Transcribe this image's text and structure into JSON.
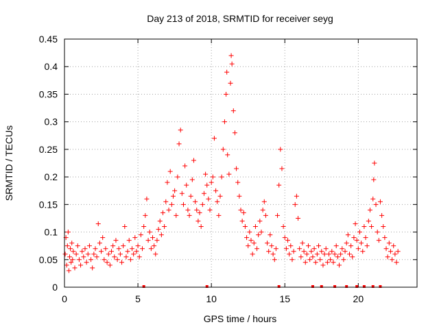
{
  "chart_data": {
    "type": "scatter",
    "title": "Day 213 of 2018, SRMTID for receiver seyg",
    "xlabel": "GPS time / hours",
    "ylabel": "SRMTID / TECUs",
    "xlim": [
      0,
      24
    ],
    "ylim": [
      0,
      0.45
    ],
    "x_ticks": [
      0,
      5,
      10,
      15,
      20
    ],
    "x_tick_labels": [
      "0",
      "5",
      "10",
      "15",
      "20"
    ],
    "y_ticks": [
      0,
      0.05,
      0.1,
      0.15,
      0.2,
      0.25,
      0.3,
      0.35,
      0.4,
      0.45
    ],
    "y_tick_labels": [
      "0",
      "0.05",
      "0.1",
      "0.15",
      "0.2",
      "0.25",
      "0.3",
      "0.35",
      "0.4",
      "0.45"
    ],
    "grid": true,
    "marker": "plus",
    "color": "#ff0000",
    "series": [
      {
        "name": "SRMTID",
        "points": [
          [
            0.05,
            0.06
          ],
          [
            0.1,
            0.09
          ],
          [
            0.15,
            0.04
          ],
          [
            0.2,
            0.075
          ],
          [
            0.25,
            0.1
          ],
          [
            0.3,
            0.03
          ],
          [
            0.35,
            0.055
          ],
          [
            0.4,
            0.07
          ],
          [
            0.45,
            0.045
          ],
          [
            0.5,
            0.08
          ],
          [
            0.55,
            0.05
          ],
          [
            0.6,
            0.065
          ],
          [
            0.7,
            0.035
          ],
          [
            0.8,
            0.06
          ],
          [
            0.9,
            0.075
          ],
          [
            1.0,
            0.05
          ],
          [
            1.1,
            0.04
          ],
          [
            1.2,
            0.065
          ],
          [
            1.3,
            0.055
          ],
          [
            1.4,
            0.07
          ],
          [
            1.5,
            0.045
          ],
          [
            1.6,
            0.06
          ],
          [
            1.7,
            0.075
          ],
          [
            1.8,
            0.05
          ],
          [
            1.9,
            0.035
          ],
          [
            2.0,
            0.06
          ],
          [
            2.1,
            0.07
          ],
          [
            2.2,
            0.055
          ],
          [
            2.3,
            0.115
          ],
          [
            2.4,
            0.08
          ],
          [
            2.5,
            0.065
          ],
          [
            2.6,
            0.09
          ],
          [
            2.7,
            0.05
          ],
          [
            2.8,
            0.07
          ],
          [
            2.9,
            0.045
          ],
          [
            3.0,
            0.06
          ],
          [
            3.1,
            0.04
          ],
          [
            3.2,
            0.065
          ],
          [
            3.3,
            0.075
          ],
          [
            3.4,
            0.055
          ],
          [
            3.5,
            0.085
          ],
          [
            3.6,
            0.05
          ],
          [
            3.7,
            0.07
          ],
          [
            3.8,
            0.06
          ],
          [
            3.9,
            0.045
          ],
          [
            4.0,
            0.075
          ],
          [
            4.1,
            0.11
          ],
          [
            4.2,
            0.055
          ],
          [
            4.3,
            0.065
          ],
          [
            4.4,
            0.085
          ],
          [
            4.5,
            0.05
          ],
          [
            4.6,
            0.07
          ],
          [
            4.7,
            0.06
          ],
          [
            4.8,
            0.09
          ],
          [
            4.9,
            0.065
          ],
          [
            5.0,
            0.075
          ],
          [
            5.1,
            0.055
          ],
          [
            5.2,
            0.095
          ],
          [
            5.3,
            0.07
          ],
          [
            5.4,
            0.11
          ],
          [
            5.5,
            0.13
          ],
          [
            5.6,
            0.16
          ],
          [
            5.7,
            0.085
          ],
          [
            5.8,
            0.1
          ],
          [
            5.9,
            0.07
          ],
          [
            6.0,
            0.09
          ],
          [
            6.1,
            0.075
          ],
          [
            6.2,
            0.06
          ],
          [
            6.3,
            0.085
          ],
          [
            6.4,
            0.105
          ],
          [
            6.5,
            0.12
          ],
          [
            6.6,
            0.095
          ],
          [
            6.7,
            0.135
          ],
          [
            6.8,
            0.11
          ],
          [
            6.9,
            0.155
          ],
          [
            7.0,
            0.19
          ],
          [
            7.1,
            0.14
          ],
          [
            7.2,
            0.21
          ],
          [
            7.3,
            0.15
          ],
          [
            7.4,
            0.165
          ],
          [
            7.5,
            0.175
          ],
          [
            7.6,
            0.13
          ],
          [
            7.7,
            0.2
          ],
          [
            7.8,
            0.26
          ],
          [
            7.9,
            0.285
          ],
          [
            8.0,
            0.17
          ],
          [
            8.1,
            0.15
          ],
          [
            8.2,
            0.22
          ],
          [
            8.3,
            0.185
          ],
          [
            8.4,
            0.14
          ],
          [
            8.5,
            0.13
          ],
          [
            8.6,
            0.165
          ],
          [
            8.7,
            0.195
          ],
          [
            8.8,
            0.23
          ],
          [
            8.9,
            0.155
          ],
          [
            9.0,
            0.14
          ],
          [
            9.1,
            0.12
          ],
          [
            9.2,
            0.135
          ],
          [
            9.3,
            0.11
          ],
          [
            9.4,
            0.15
          ],
          [
            9.5,
            0.17
          ],
          [
            9.6,
            0.205
          ],
          [
            9.7,
            0.185
          ],
          [
            9.8,
            0.16
          ],
          [
            9.9,
            0.14
          ],
          [
            10.0,
            0.19
          ],
          [
            10.1,
            0.2
          ],
          [
            10.2,
            0.27
          ],
          [
            10.3,
            0.175
          ],
          [
            10.4,
            0.155
          ],
          [
            10.5,
            0.13
          ],
          [
            10.6,
            0.165
          ],
          [
            10.7,
            0.2
          ],
          [
            10.8,
            0.25
          ],
          [
            10.9,
            0.3
          ],
          [
            11.0,
            0.35
          ],
          [
            11.05,
            0.39
          ],
          [
            11.1,
            0.24
          ],
          [
            11.2,
            0.205
          ],
          [
            11.3,
            0.37
          ],
          [
            11.35,
            0.42
          ],
          [
            11.4,
            0.405
          ],
          [
            11.5,
            0.32
          ],
          [
            11.6,
            0.28
          ],
          [
            11.7,
            0.215
          ],
          [
            11.8,
            0.19
          ],
          [
            11.9,
            0.165
          ],
          [
            12.0,
            0.14
          ],
          [
            12.1,
            0.12
          ],
          [
            12.2,
            0.135
          ],
          [
            12.3,
            0.11
          ],
          [
            12.4,
            0.09
          ],
          [
            12.5,
            0.075
          ],
          [
            12.6,
            0.1
          ],
          [
            12.7,
            0.085
          ],
          [
            12.8,
            0.06
          ],
          [
            12.9,
            0.08
          ],
          [
            13.0,
            0.11
          ],
          [
            13.1,
            0.07
          ],
          [
            13.2,
            0.095
          ],
          [
            13.3,
            0.12
          ],
          [
            13.4,
            0.1
          ],
          [
            13.5,
            0.14
          ],
          [
            13.6,
            0.155
          ],
          [
            13.7,
            0.13
          ],
          [
            13.8,
            0.08
          ],
          [
            13.9,
            0.065
          ],
          [
            14.0,
            0.095
          ],
          [
            14.1,
            0.075
          ],
          [
            14.2,
            0.06
          ],
          [
            14.3,
            0.05
          ],
          [
            14.4,
            0.07
          ],
          [
            14.5,
            0.13
          ],
          [
            14.6,
            0.185
          ],
          [
            14.7,
            0.25
          ],
          [
            14.8,
            0.215
          ],
          [
            14.9,
            0.11
          ],
          [
            15.0,
            0.09
          ],
          [
            15.1,
            0.07
          ],
          [
            15.2,
            0.085
          ],
          [
            15.3,
            0.06
          ],
          [
            15.4,
            0.075
          ],
          [
            15.5,
            0.05
          ],
          [
            15.6,
            0.065
          ],
          [
            15.7,
            0.15
          ],
          [
            15.8,
            0.165
          ],
          [
            15.9,
            0.125
          ],
          [
            16.0,
            0.07
          ],
          [
            16.1,
            0.055
          ],
          [
            16.2,
            0.08
          ],
          [
            16.3,
            0.065
          ],
          [
            16.4,
            0.045
          ],
          [
            16.5,
            0.06
          ],
          [
            16.6,
            0.075
          ],
          [
            16.7,
            0.05
          ],
          [
            16.8,
            0.065
          ],
          [
            16.9,
            0.055
          ],
          [
            17.0,
            0.07
          ],
          [
            17.1,
            0.045
          ],
          [
            17.2,
            0.06
          ],
          [
            17.3,
            0.075
          ],
          [
            17.4,
            0.05
          ],
          [
            17.5,
            0.065
          ],
          [
            17.6,
            0.04
          ],
          [
            17.7,
            0.06
          ],
          [
            17.8,
            0.07
          ],
          [
            17.9,
            0.045
          ],
          [
            18.0,
            0.06
          ],
          [
            18.1,
            0.05
          ],
          [
            18.2,
            0.065
          ],
          [
            18.3,
            0.045
          ],
          [
            18.4,
            0.06
          ],
          [
            18.5,
            0.075
          ],
          [
            18.6,
            0.055
          ],
          [
            18.7,
            0.04
          ],
          [
            18.8,
            0.06
          ],
          [
            18.9,
            0.07
          ],
          [
            19.0,
            0.05
          ],
          [
            19.1,
            0.065
          ],
          [
            19.2,
            0.08
          ],
          [
            19.3,
            0.095
          ],
          [
            19.4,
            0.06
          ],
          [
            19.5,
            0.075
          ],
          [
            19.6,
            0.055
          ],
          [
            19.7,
            0.09
          ],
          [
            19.8,
            0.115
          ],
          [
            19.9,
            0.085
          ],
          [
            20.0,
            0.07
          ],
          [
            20.1,
            0.1
          ],
          [
            20.2,
            0.08
          ],
          [
            20.3,
            0.065
          ],
          [
            20.4,
            0.11
          ],
          [
            20.5,
            0.09
          ],
          [
            20.6,
            0.075
          ],
          [
            20.7,
            0.12
          ],
          [
            20.8,
            0.14
          ],
          [
            20.9,
            0.11
          ],
          [
            21.0,
            0.16
          ],
          [
            21.05,
            0.195
          ],
          [
            21.1,
            0.225
          ],
          [
            21.2,
            0.15
          ],
          [
            21.3,
            0.1
          ],
          [
            21.4,
            0.085
          ],
          [
            21.5,
            0.155
          ],
          [
            21.6,
            0.13
          ],
          [
            21.7,
            0.11
          ],
          [
            21.8,
            0.09
          ],
          [
            21.9,
            0.07
          ],
          [
            22.0,
            0.055
          ],
          [
            22.1,
            0.08
          ],
          [
            22.2,
            0.065
          ],
          [
            22.3,
            0.05
          ],
          [
            22.4,
            0.075
          ],
          [
            22.5,
            0.06
          ],
          [
            22.6,
            0.045
          ],
          [
            22.7,
            0.065
          ]
        ]
      }
    ],
    "zero_markers": [
      5.4,
      9.7,
      14.6,
      16.9,
      17.5,
      18.4,
      19.2,
      19.9,
      20.4,
      21.0,
      21.5
    ]
  }
}
